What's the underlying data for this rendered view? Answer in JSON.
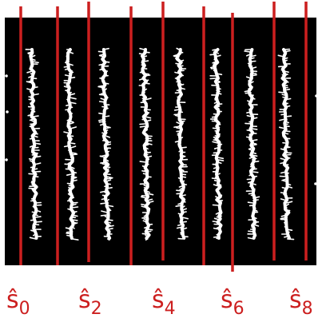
{
  "colors": {
    "background": "#000000",
    "plant_rows": "#ffffff",
    "separator_lines": "#cc1f1f",
    "labels": "#cc1f1f"
  },
  "separator_count": 9,
  "labels": [
    {
      "base": "ŝ",
      "sub": "0"
    },
    {
      "base": "ŝ",
      "sub": "2"
    },
    {
      "base": "ŝ",
      "sub": "4"
    },
    {
      "base": "ŝ",
      "sub": "6"
    },
    {
      "base": "ŝ",
      "sub": "8"
    }
  ],
  "plant_row_count": 8
}
